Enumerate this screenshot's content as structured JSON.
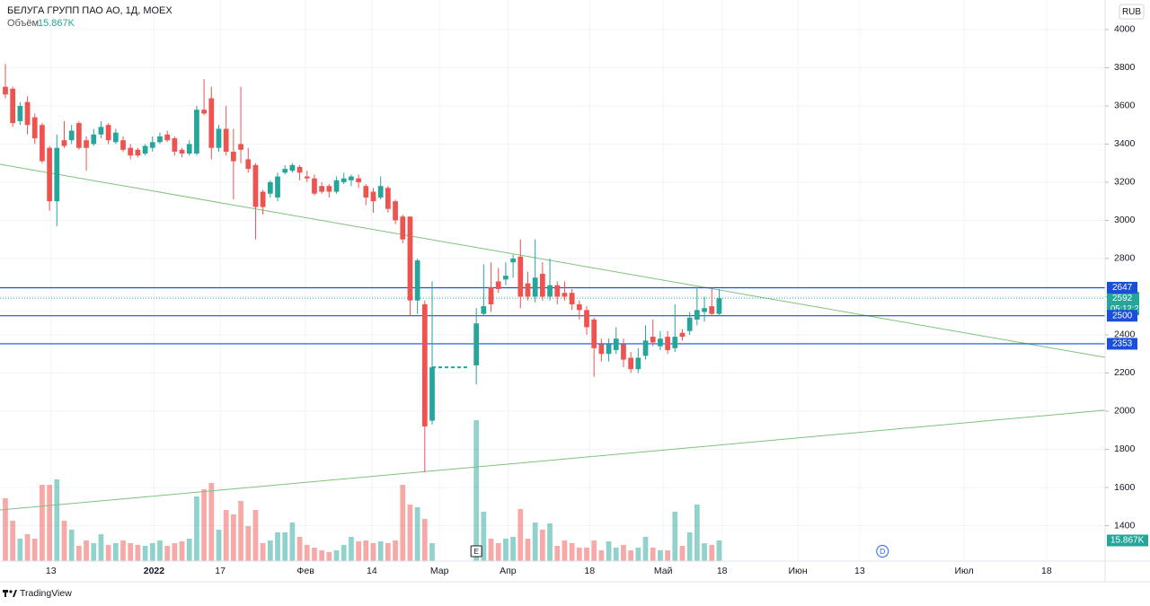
{
  "chart_data": {
    "type": "candlestick",
    "title": "БЕЛУГА ГРУПП ПАО АО, 1Д, MOEX",
    "volume_label": "Объём",
    "volume_last_label": "15.867K",
    "currency": "RUB",
    "countdown": "05:12:20",
    "brand": "TradingView",
    "up_color": "#26a69a",
    "down_color": "#ef5350",
    "grid": true,
    "xlim": [
      -0.73,
      149.45
    ],
    "ylim": [
      1214,
      4155
    ],
    "volume_ylim": [
      0,
      431250
    ],
    "yticks": [
      1400,
      1600,
      1800,
      2000,
      2200,
      2400,
      2600,
      2800,
      3000,
      3200,
      3400,
      3600,
      3800,
      4000
    ],
    "xticks": [
      {
        "value": 6.2,
        "label": "13"
      },
      {
        "value": 20.2,
        "label": "2022"
      },
      {
        "value": 29.2,
        "label": "17"
      },
      {
        "value": 40.8,
        "label": "Фев"
      },
      {
        "value": 49.8,
        "label": "14"
      },
      {
        "value": 59,
        "label": "Мар"
      },
      {
        "value": 68.3,
        "label": "Апр"
      },
      {
        "value": 79.4,
        "label": "18"
      },
      {
        "value": 89.4,
        "label": "Май"
      },
      {
        "value": 97.4,
        "label": "18"
      },
      {
        "value": 107.7,
        "label": "Июн"
      },
      {
        "value": 116.1,
        "label": "13"
      },
      {
        "value": 130.3,
        "label": "Июл"
      },
      {
        "value": 141.5,
        "label": "18"
      }
    ],
    "x": [
      0,
      1,
      2,
      3,
      4,
      5,
      6,
      7,
      8,
      9,
      10,
      11,
      12,
      13,
      14,
      15,
      16,
      17,
      18,
      19,
      20,
      21,
      22,
      23,
      24,
      25,
      26,
      27,
      28,
      29,
      30,
      31,
      32,
      33,
      34,
      35,
      36,
      37,
      38,
      39,
      40,
      41,
      42,
      43,
      44,
      45,
      46,
      47,
      48,
      49,
      50,
      51,
      52,
      53,
      54,
      55,
      56,
      57,
      58,
      64,
      65,
      66,
      67,
      68,
      69,
      70,
      71,
      72,
      73,
      74,
      75,
      76,
      77,
      78,
      79,
      80,
      81,
      82,
      83,
      84,
      85,
      86,
      87,
      88,
      89,
      90,
      91,
      92,
      93,
      94,
      95,
      96,
      97
    ],
    "open": [
      3700,
      3690,
      3520,
      3620,
      3540,
      3500,
      3380,
      3100,
      3420,
      3420,
      3510,
      3420,
      3400,
      3450,
      3500,
      3410,
      3420,
      3380,
      3370,
      3350,
      3380,
      3410,
      3450,
      3430,
      3370,
      3350,
      3350,
      3580,
      3640,
      3380,
      3480,
      3360,
      3400,
      3320,
      3290,
      3150,
      3140,
      3120,
      3250,
      3260,
      3280,
      3230,
      3220,
      3180,
      3180,
      3150,
      3200,
      3210,
      3220,
      3180,
      3150,
      3120,
      3170,
      3100,
      3020,
      3020,
      2580,
      2560,
      1950,
      2240,
      2510,
      2650,
      2680,
      2690,
      2780,
      2810,
      2670,
      2600,
      2720,
      2600,
      2660,
      2620,
      2620,
      2560,
      2530,
      2480,
      2350,
      2300,
      2320,
      2350,
      2280,
      2220,
      2290,
      2390,
      2340,
      2390,
      2330,
      2410,
      2420,
      2480,
      2520,
      2550,
      2510
    ],
    "high": [
      3820,
      3700,
      3620,
      3650,
      3560,
      3510,
      3390,
      3450,
      3520,
      3500,
      3520,
      3440,
      3480,
      3520,
      3510,
      3480,
      3440,
      3400,
      3380,
      3400,
      3440,
      3460,
      3470,
      3440,
      3380,
      3420,
      3600,
      3740,
      3700,
      3500,
      3600,
      3480,
      3700,
      3380,
      3300,
      3160,
      3210,
      3250,
      3290,
      3300,
      3290,
      3260,
      3240,
      3200,
      3190,
      3230,
      3250,
      3240,
      3240,
      3190,
      3170,
      3230,
      3180,
      3110,
      3030,
      3020,
      2800,
      2580,
      2680,
      2540,
      2770,
      2780,
      2750,
      2780,
      2820,
      2900,
      2730,
      2900,
      2780,
      2800,
      2680,
      2680,
      2640,
      2580,
      2550,
      2490,
      2380,
      2380,
      2440,
      2380,
      2310,
      2330,
      2450,
      2480,
      2420,
      2420,
      2560,
      2430,
      2520,
      2650,
      2600,
      2650,
      2640
    ],
    "low": [
      3640,
      3490,
      3500,
      3450,
      3400,
      3300,
      3050,
      2970,
      3380,
      3400,
      3370,
      3260,
      3390,
      3430,
      3400,
      3400,
      3360,
      3320,
      3330,
      3340,
      3360,
      3400,
      3410,
      3340,
      3330,
      3340,
      3340,
      3550,
      3320,
      3360,
      3340,
      3110,
      3300,
      3250,
      2900,
      3030,
      3120,
      3100,
      3240,
      3250,
      3210,
      3200,
      3130,
      3140,
      3120,
      3140,
      3190,
      3180,
      3170,
      3080,
      3040,
      3110,
      3040,
      2980,
      2880,
      2500,
      2510,
      1680,
      1930,
      2140,
      2500,
      2520,
      2620,
      2660,
      2700,
      2540,
      2580,
      2570,
      2580,
      2580,
      2560,
      2580,
      2530,
      2480,
      2400,
      2180,
      2260,
      2260,
      2300,
      2230,
      2200,
      2200,
      2270,
      2340,
      2320,
      2300,
      2310,
      2370,
      2400,
      2450,
      2470,
      2500,
      2500
    ],
    "close": [
      3660,
      3510,
      3600,
      3500,
      3430,
      3310,
      3100,
      3380,
      3390,
      3470,
      3380,
      3380,
      3450,
      3490,
      3420,
      3460,
      3370,
      3340,
      3340,
      3390,
      3410,
      3440,
      3420,
      3360,
      3350,
      3400,
      3580,
      3560,
      3380,
      3480,
      3360,
      3310,
      3370,
      3270,
      3070,
      3070,
      3200,
      3230,
      3270,
      3290,
      3250,
      3220,
      3140,
      3150,
      3150,
      3210,
      3220,
      3230,
      3200,
      3120,
      3100,
      3180,
      3060,
      3000,
      2900,
      2580,
      2790,
      1920,
      2230,
      2460,
      2550,
      2560,
      2640,
      2710,
      2800,
      2600,
      2600,
      2700,
      2600,
      2660,
      2600,
      2600,
      2560,
      2530,
      2440,
      2330,
      2300,
      2350,
      2380,
      2270,
      2220,
      2280,
      2370,
      2360,
      2380,
      2320,
      2390,
      2390,
      2490,
      2530,
      2540,
      2510,
      2592
    ],
    "volume": [
      48300,
      31050,
      17250,
      20700,
      17250,
      58650,
      58650,
      62790,
      31050,
      24150,
      11730,
      15870,
      13800,
      20700,
      12420,
      13800,
      15870,
      13800,
      12420,
      11730,
      13800,
      15870,
      11730,
      13800,
      15180,
      17250,
      49680,
      55200,
      60030,
      24150,
      39330,
      35880,
      46230,
      26910,
      39330,
      13800,
      15870,
      22080,
      22080,
      29670,
      18630,
      12420,
      10350,
      8280,
      6900,
      8280,
      12420,
      18630,
      15180,
      15870,
      13800,
      15180,
      13800,
      15870,
      58650,
      43470,
      41400,
      32430,
      13800,
      108330,
      37950,
      17250,
      13800,
      17250,
      18630,
      40020,
      17250,
      29670,
      24150,
      28980,
      11730,
      15870,
      13800,
      10350,
      10350,
      15870,
      8280,
      15180,
      10350,
      12420,
      8280,
      10350,
      18630,
      10350,
      8280,
      8280,
      37950,
      11730,
      22080,
      43470,
      13800,
      12420,
      15867
    ],
    "levels": [
      {
        "value": 2647,
        "color": "#1c4fd8"
      },
      {
        "value": 2500,
        "color": "#1c4fd8"
      },
      {
        "value": 2353,
        "color": "#1c4fd8"
      }
    ],
    "trendlines": [
      {
        "points": [
          [
            -0.73,
            3294
          ],
          [
            149.45,
            2282
          ]
        ],
        "color": "#7cc47a"
      },
      {
        "points": [
          [
            -0.73,
            1482
          ],
          [
            149.45,
            2005
          ]
        ],
        "color": "#7cc47a"
      }
    ],
    "gap_line": {
      "x": [
        58,
        63
      ],
      "value": 2230,
      "color": "#26a69a"
    },
    "events": [
      {
        "x": 64,
        "label": "E"
      },
      {
        "x": 119.2,
        "label": "D"
      }
    ]
  }
}
